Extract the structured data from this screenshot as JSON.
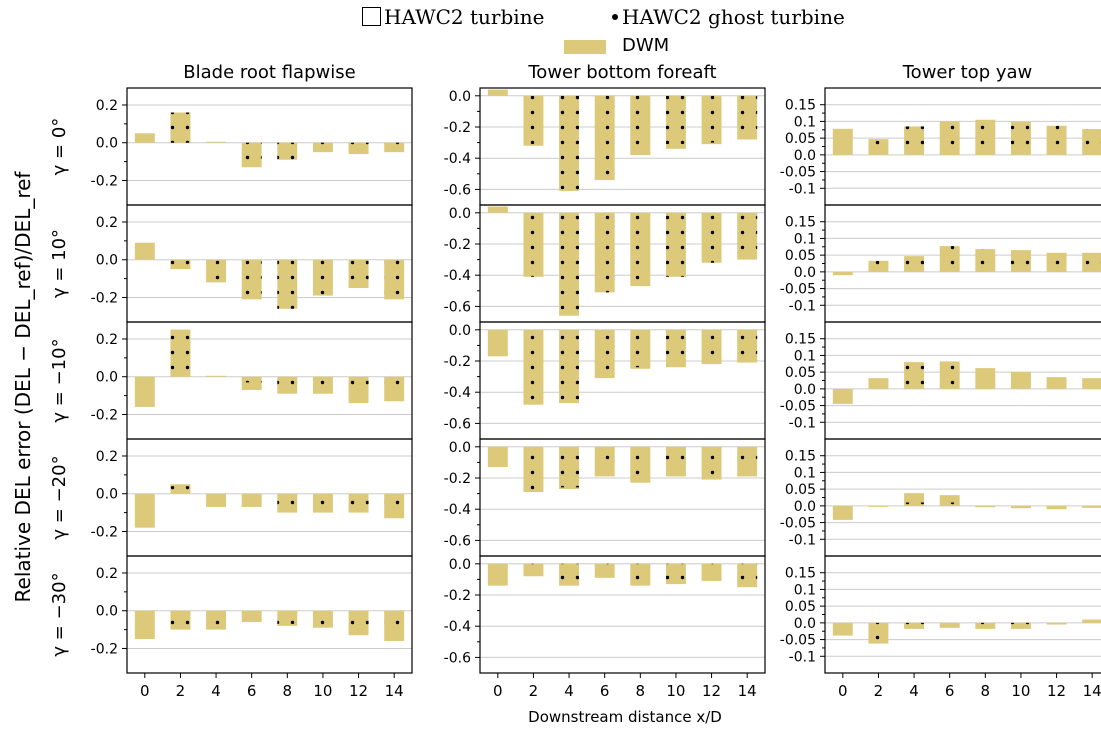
{
  "legend": {
    "turbine_label": "HAWC2 turbine",
    "ghost_label": "HAWC2 ghost turbine",
    "dwm_label": "DWM",
    "dwm_color": "#ddc97a"
  },
  "figure": {
    "ylabel": "Relative DEL error (DEL − DEL_ref)/DEL_ref",
    "xlabel": "Downstream distance x/D"
  },
  "chart_data": {
    "type": "bar",
    "categories": [
      0,
      2,
      4,
      6,
      8,
      10,
      12,
      14
    ],
    "columns": [
      {
        "title": "Blade root flapwise",
        "ylim": [
          -0.33,
          0.29
        ],
        "ticks": [
          -0.2,
          0.0,
          0.2
        ],
        "ticklabels": [
          "-0.2",
          "0.0",
          "0.2"
        ]
      },
      {
        "title": "Tower bottom foreaft",
        "ylim": [
          -0.7,
          0.05
        ],
        "ticks": [
          -0.6,
          -0.4,
          -0.2,
          0.0
        ],
        "ticklabels": [
          "-0.6",
          "-0.4",
          "-0.2",
          "0.0"
        ]
      },
      {
        "title": "Tower top yaw",
        "ylim": [
          -0.15,
          0.2
        ],
        "ticks": [
          -0.1,
          -0.05,
          0.0,
          0.05,
          0.1,
          0.15
        ],
        "ticklabels": [
          "-0.1",
          "-0.05",
          "0.0",
          "0.05",
          "0.1",
          "0.15"
        ]
      }
    ],
    "rows": [
      {
        "label": "γ = 0°",
        "dwm": [
          [
            0.05,
            0.16,
            0.005,
            -0.13,
            -0.09,
            -0.05,
            -0.06,
            -0.05
          ],
          [
            0.04,
            -0.32,
            -0.61,
            -0.54,
            -0.38,
            -0.34,
            -0.31,
            -0.28
          ],
          [
            0.078,
            0.047,
            0.085,
            0.1,
            0.105,
            0.099,
            0.087,
            0.077
          ]
        ],
        "ghost": [
          [
            0.0,
            0.16,
            0.0,
            -0.13,
            -0.09,
            -0.05,
            -0.06,
            -0.05
          ],
          [
            0.0,
            -0.31,
            -0.61,
            -0.54,
            -0.37,
            -0.31,
            -0.3,
            -0.26
          ],
          [
            0.0,
            0.042,
            0.085,
            0.1,
            0.105,
            0.099,
            0.087,
            0.077
          ]
        ]
      },
      {
        "label": "γ = 10°",
        "dwm": [
          [
            0.09,
            -0.05,
            -0.12,
            -0.21,
            -0.26,
            -0.19,
            -0.15,
            -0.21
          ],
          [
            0.04,
            -0.41,
            -0.66,
            -0.51,
            -0.47,
            -0.41,
            -0.32,
            -0.3
          ],
          [
            -0.01,
            0.033,
            0.047,
            0.077,
            0.068,
            0.065,
            0.057,
            0.057
          ]
        ],
        "ghost": [
          [
            0.0,
            -0.05,
            -0.12,
            -0.21,
            -0.26,
            -0.19,
            -0.15,
            -0.21
          ],
          [
            0.0,
            -0.41,
            -0.66,
            -0.51,
            -0.46,
            -0.41,
            -0.32,
            -0.3
          ],
          [
            0.0,
            0.033,
            0.047,
            0.077,
            0.068,
            0.065,
            0.057,
            0.057
          ]
        ]
      },
      {
        "label": "γ = −10°",
        "dwm": [
          [
            -0.16,
            0.25,
            0.005,
            -0.07,
            -0.09,
            -0.09,
            -0.14,
            -0.13
          ],
          [
            -0.17,
            -0.48,
            -0.47,
            -0.31,
            -0.25,
            -0.24,
            -0.22,
            -0.21
          ],
          [
            -0.045,
            0.032,
            0.08,
            0.082,
            0.062,
            0.05,
            0.035,
            0.032
          ]
        ],
        "ghost": [
          [
            0.0,
            0.25,
            0.0,
            -0.03,
            -0.09,
            -0.09,
            -0.09,
            -0.09
          ],
          [
            0.0,
            -0.48,
            -0.47,
            -0.31,
            -0.24,
            -0.23,
            -0.22,
            -0.2
          ],
          [
            0.0,
            0.01,
            0.08,
            0.082,
            0.01,
            0.01,
            0.01,
            0.01
          ]
        ]
      },
      {
        "label": "γ = −20°",
        "dwm": [
          [
            -0.18,
            0.05,
            -0.07,
            -0.07,
            -0.1,
            -0.1,
            -0.1,
            -0.13
          ],
          [
            -0.13,
            -0.29,
            -0.27,
            -0.19,
            -0.23,
            -0.19,
            -0.21,
            -0.19
          ],
          [
            -0.042,
            -0.003,
            0.038,
            0.032,
            -0.004,
            -0.007,
            -0.01,
            -0.006
          ]
        ],
        "ghost": [
          [
            0.0,
            0.04,
            -0.03,
            -0.03,
            -0.09,
            -0.09,
            -0.09,
            -0.08
          ],
          [
            0.0,
            -0.28,
            -0.26,
            -0.12,
            -0.2,
            -0.12,
            -0.2,
            -0.12
          ],
          [
            0.0,
            0.0,
            0.01,
            0.01,
            0.0,
            0.0,
            0.0,
            0.0
          ]
        ]
      },
      {
        "label": "γ = −30°",
        "dwm": [
          [
            -0.15,
            -0.1,
            -0.1,
            -0.06,
            -0.08,
            -0.09,
            -0.13,
            -0.16
          ],
          [
            -0.14,
            -0.08,
            -0.14,
            -0.09,
            -0.14,
            -0.13,
            -0.11,
            -0.15
          ],
          [
            -0.038,
            -0.062,
            -0.018,
            -0.015,
            -0.018,
            -0.018,
            -0.005,
            0.01
          ]
        ],
        "ghost": [
          [
            0.0,
            -0.09,
            -0.09,
            -0.03,
            -0.07,
            -0.08,
            -0.08,
            -0.13
          ],
          [
            0.0,
            -0.06,
            -0.12,
            -0.06,
            -0.12,
            -0.12,
            -0.06,
            -0.12
          ],
          [
            0.0,
            -0.06,
            -0.01,
            0.0,
            -0.01,
            -0.01,
            0.0,
            0.0
          ]
        ]
      }
    ]
  }
}
